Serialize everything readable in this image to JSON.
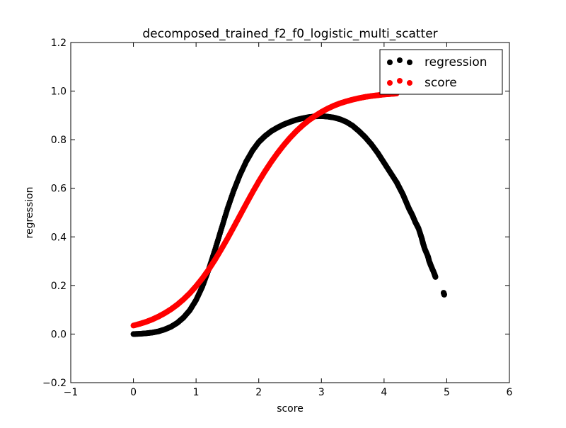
{
  "chart_data": {
    "type": "scatter",
    "title": "decomposed_trained_f2_f0_logistic_multi_scatter",
    "xlabel": "score",
    "ylabel": "regression",
    "xlim": [
      -1,
      6
    ],
    "ylim": [
      -0.2,
      1.2
    ],
    "x_ticks": [
      -1,
      0,
      1,
      2,
      3,
      4,
      5,
      6
    ],
    "x_tick_labels": [
      "−1",
      "0",
      "1",
      "2",
      "3",
      "4",
      "5",
      "6"
    ],
    "y_ticks": [
      -0.2,
      0.0,
      0.2,
      0.4,
      0.6,
      0.8,
      1.0,
      1.2
    ],
    "y_tick_labels": [
      "−0.2",
      "0.0",
      "0.2",
      "0.4",
      "0.6",
      "0.8",
      "1.0",
      "1.2"
    ],
    "grid": false,
    "legend_position": "top-right",
    "series": [
      {
        "name": "regression",
        "color": "#000000",
        "points": [
          [
            0.0,
            0.0
          ],
          [
            0.1,
            0.001
          ],
          [
            0.2,
            0.003
          ],
          [
            0.3,
            0.006
          ],
          [
            0.4,
            0.011
          ],
          [
            0.5,
            0.019
          ],
          [
            0.6,
            0.03
          ],
          [
            0.7,
            0.046
          ],
          [
            0.8,
            0.068
          ],
          [
            0.9,
            0.098
          ],
          [
            1.0,
            0.14
          ],
          [
            1.1,
            0.195
          ],
          [
            1.2,
            0.265
          ],
          [
            1.3,
            0.345
          ],
          [
            1.4,
            0.43
          ],
          [
            1.5,
            0.515
          ],
          [
            1.6,
            0.59
          ],
          [
            1.7,
            0.655
          ],
          [
            1.8,
            0.71
          ],
          [
            1.9,
            0.755
          ],
          [
            2.0,
            0.79
          ],
          [
            2.1,
            0.815
          ],
          [
            2.2,
            0.835
          ],
          [
            2.3,
            0.85
          ],
          [
            2.4,
            0.863
          ],
          [
            2.5,
            0.873
          ],
          [
            2.6,
            0.882
          ],
          [
            2.7,
            0.888
          ],
          [
            2.8,
            0.893
          ],
          [
            2.9,
            0.896
          ],
          [
            3.0,
            0.897
          ],
          [
            3.1,
            0.895
          ],
          [
            3.2,
            0.891
          ],
          [
            3.3,
            0.884
          ],
          [
            3.4,
            0.873
          ],
          [
            3.5,
            0.857
          ],
          [
            3.6,
            0.835
          ],
          [
            3.7,
            0.81
          ],
          [
            3.8,
            0.78
          ],
          [
            3.9,
            0.745
          ],
          [
            4.0,
            0.705
          ],
          [
            4.1,
            0.665
          ],
          [
            4.2,
            0.625
          ],
          [
            4.25,
            0.6
          ],
          [
            4.3,
            0.575
          ],
          [
            4.35,
            0.545
          ],
          [
            4.4,
            0.515
          ],
          [
            4.45,
            0.49
          ],
          [
            4.5,
            0.46
          ],
          [
            4.55,
            0.435
          ],
          [
            4.6,
            0.395
          ],
          [
            4.62,
            0.375
          ],
          [
            4.65,
            0.35
          ],
          [
            4.7,
            0.32
          ],
          [
            4.72,
            0.3
          ],
          [
            4.75,
            0.28
          ],
          [
            4.8,
            0.25
          ],
          [
            4.82,
            0.235
          ],
          [
            4.95,
            0.17
          ],
          [
            4.96,
            0.162
          ]
        ]
      },
      {
        "name": "score",
        "color": "#ff0000",
        "points": [
          [
            0.0,
            0.035
          ],
          [
            0.1,
            0.042
          ],
          [
            0.2,
            0.05
          ],
          [
            0.3,
            0.06
          ],
          [
            0.4,
            0.072
          ],
          [
            0.5,
            0.086
          ],
          [
            0.6,
            0.102
          ],
          [
            0.7,
            0.121
          ],
          [
            0.8,
            0.143
          ],
          [
            0.9,
            0.168
          ],
          [
            1.0,
            0.197
          ],
          [
            1.1,
            0.229
          ],
          [
            1.2,
            0.265
          ],
          [
            1.3,
            0.305
          ],
          [
            1.4,
            0.348
          ],
          [
            1.5,
            0.393
          ],
          [
            1.6,
            0.44
          ],
          [
            1.7,
            0.488
          ],
          [
            1.8,
            0.536
          ],
          [
            1.9,
            0.583
          ],
          [
            2.0,
            0.628
          ],
          [
            2.1,
            0.67
          ],
          [
            2.2,
            0.709
          ],
          [
            2.3,
            0.745
          ],
          [
            2.4,
            0.778
          ],
          [
            2.5,
            0.808
          ],
          [
            2.6,
            0.835
          ],
          [
            2.7,
            0.859
          ],
          [
            2.8,
            0.88
          ],
          [
            2.9,
            0.898
          ],
          [
            3.0,
            0.914
          ],
          [
            3.1,
            0.928
          ],
          [
            3.2,
            0.94
          ],
          [
            3.3,
            0.95
          ],
          [
            3.4,
            0.958
          ],
          [
            3.5,
            0.965
          ],
          [
            3.6,
            0.971
          ],
          [
            3.7,
            0.976
          ],
          [
            3.8,
            0.98
          ],
          [
            3.9,
            0.983
          ],
          [
            4.0,
            0.986
          ],
          [
            4.1,
            0.988
          ],
          [
            4.2,
            0.99
          ]
        ]
      }
    ]
  }
}
